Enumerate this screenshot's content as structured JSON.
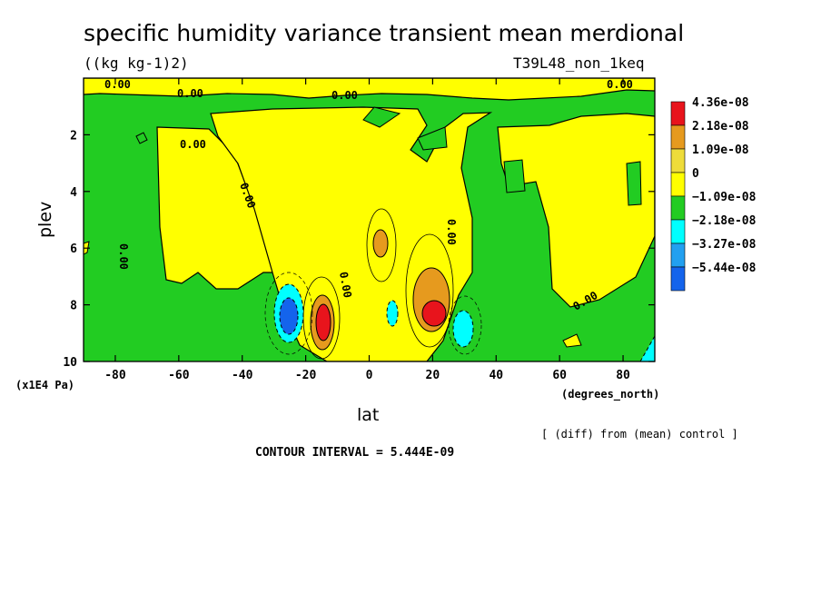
{
  "chart_data": {
    "type": "heatmap",
    "title": "specific humidity variance transient mean merdional",
    "units": "((kg kg-1)2)",
    "run_label": "T39L48_non_1keq",
    "xlabel": "lat",
    "x_units": "(degrees_north)",
    "ylabel": "plev",
    "y_units": "(x1E4 Pa)",
    "xlim": [
      -90,
      90
    ],
    "ylim": [
      10,
      0
    ],
    "x_ticks": [
      -80,
      -60,
      -40,
      -20,
      0,
      20,
      40,
      60,
      80
    ],
    "y_ticks": [
      2,
      4,
      6,
      8,
      10
    ],
    "contour_interval_text": "CONTOUR INTERVAL = 5.444E-09",
    "footnote": "[ (diff) from (mean) control ]",
    "contour_labels": [
      "0.00",
      "0.00",
      "0.00",
      "0.00",
      "0.00",
      "0.00",
      "0.00",
      "0.00",
      "0.00",
      "0.00"
    ],
    "legend": [
      {
        "label": "4.36e-08",
        "color": "#e8141c"
      },
      {
        "label": "2.18e-08",
        "color": "#e69a1e"
      },
      {
        "label": "1.09e-08",
        "color": "#eedc3a"
      },
      {
        "label": "0",
        "color": "#ffff00"
      },
      {
        "label": "−1.09e-08",
        "color": "#22cc22"
      },
      {
        "label": "−2.18e-08",
        "color": "#00ffff"
      },
      {
        "label": "−3.27e-08",
        "color": "#22a0f0"
      },
      {
        "label": "−5.44e-08",
        "color": "#1464ec"
      }
    ],
    "features": [
      {
        "lat": -15,
        "plev": 8.4,
        "value": 4.36e-08
      },
      {
        "lat": 21,
        "plev": 8.3,
        "value": 4.36e-08
      },
      {
        "lat": 5,
        "plev": 5.8,
        "value": 2.18e-08
      },
      {
        "lat": 18,
        "plev": 7.4,
        "value": 1.09e-08
      },
      {
        "lat": -26,
        "plev": 8.3,
        "value": -3.27e-08
      },
      {
        "lat": 30,
        "plev": 8.6,
        "value": -2.18e-08
      },
      {
        "lat": 7,
        "plev": 8.4,
        "value": -2.18e-08
      }
    ]
  }
}
